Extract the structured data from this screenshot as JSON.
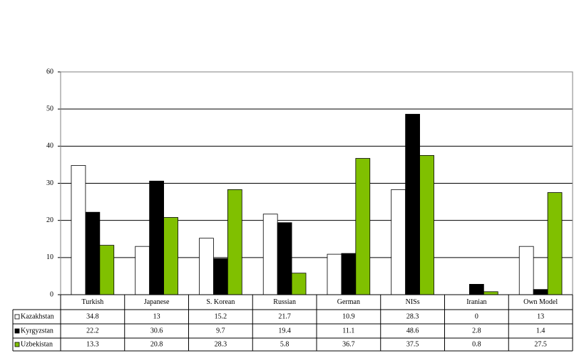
{
  "chart_data": {
    "type": "bar",
    "categories": [
      "Turkish",
      "Japanese",
      "S. Korean",
      "Russian",
      "German",
      "NISs",
      "Iranian",
      "Own Model"
    ],
    "series": [
      {
        "name": "Kazakhstan",
        "color": "#ffffff",
        "values": [
          34.8,
          13,
          15.2,
          21.7,
          10.9,
          28.3,
          0,
          13
        ]
      },
      {
        "name": "Kyrgyzstan",
        "color": "#000000",
        "values": [
          22.2,
          30.6,
          9.7,
          19.4,
          11.1,
          48.6,
          2.8,
          1.4
        ]
      },
      {
        "name": "Uzbekistan",
        "color": "#80c000",
        "values": [
          13.3,
          20.8,
          28.3,
          5.8,
          36.7,
          37.5,
          0.8,
          27.5
        ]
      }
    ],
    "ylim": [
      0,
      60
    ],
    "yticks": [
      0,
      10,
      20,
      30,
      40,
      50,
      60
    ],
    "grid": true,
    "data_table": true
  }
}
